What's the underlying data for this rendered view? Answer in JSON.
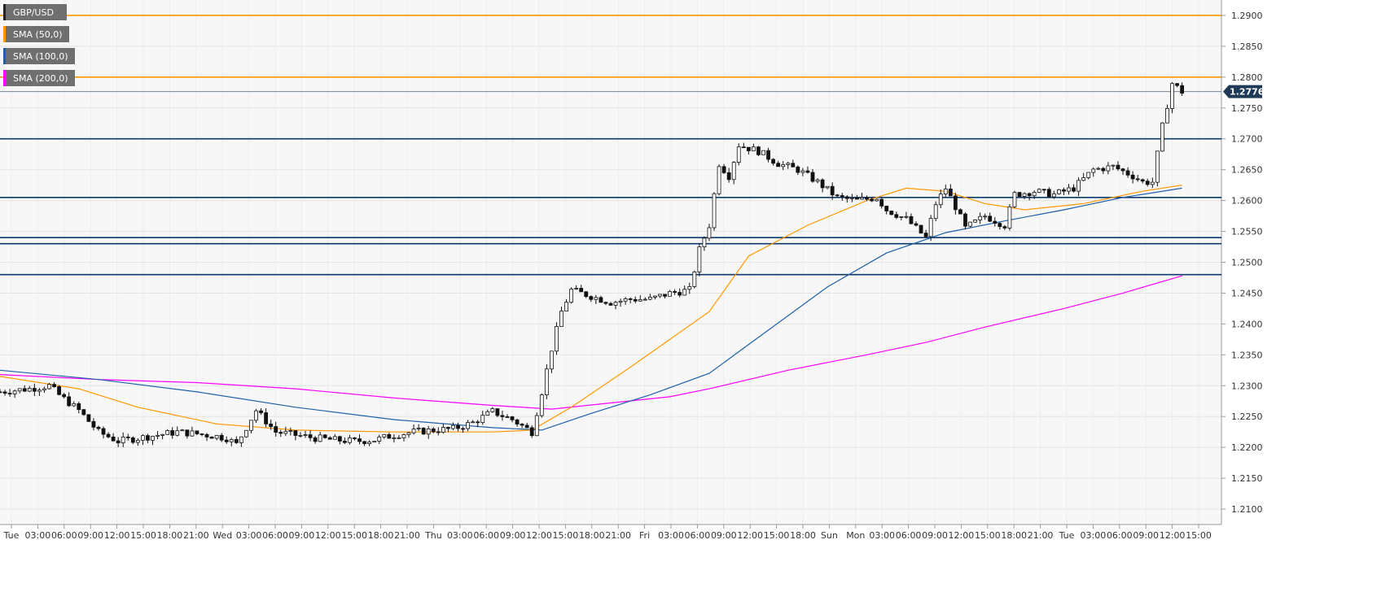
{
  "chart_data": {
    "type": "candlestick",
    "symbol": "GBP/USD",
    "ylim": [
      1.2075,
      1.2925
    ],
    "y_ticks": [
      "1.2100",
      "1.2150",
      "1.2200",
      "1.2250",
      "1.2300",
      "1.2350",
      "1.2400",
      "1.2450",
      "1.2500",
      "1.2550",
      "1.2600",
      "1.2650",
      "1.2700",
      "1.2750",
      "1.2800",
      "1.2850",
      "1.2900"
    ],
    "last_price": 1.27765,
    "last_price_label": "1.27765",
    "x_ticks": [
      "Tue",
      "03:00",
      "06:00",
      "09:00",
      "12:00",
      "15:00",
      "18:00",
      "21:00",
      "Wed",
      "03:00",
      "06:00",
      "09:00",
      "12:00",
      "15:00",
      "18:00",
      "21:00",
      "Thu",
      "03:00",
      "06:00",
      "09:00",
      "12:00",
      "15:00",
      "18:00",
      "21:00",
      "Fri",
      "03:00",
      "06:00",
      "09:00",
      "12:00",
      "15:00",
      "18:00",
      "Sun",
      "Mon",
      "03:00",
      "06:00",
      "09:00",
      "12:00",
      "15:00",
      "18:00",
      "21:00",
      "Tue",
      "03:00",
      "06:00",
      "09:00",
      "12:00",
      "15:00"
    ],
    "legend": [
      {
        "label": "GBP/USD",
        "color": "#222222"
      },
      {
        "label": "SMA (50,0)",
        "color": "#ff9800"
      },
      {
        "label": "SMA (100,0)",
        "color": "#1e5fa8"
      },
      {
        "label": "SMA (200,0)",
        "color": "#ff00ff"
      }
    ],
    "resistance_levels": [
      1.29,
      1.28
    ],
    "resistance_color": "#ff9800",
    "support_levels": [
      1.27,
      1.2605,
      1.254,
      1.253,
      1.248
    ],
    "support_color": "#0d3a6e",
    "price_path": [
      [
        0,
        1.229
      ],
      [
        3,
        1.2295
      ],
      [
        5,
        1.23
      ],
      [
        6,
        1.2285
      ],
      [
        8,
        1.226
      ],
      [
        10,
        1.2225
      ],
      [
        12,
        1.221
      ],
      [
        14,
        1.2215
      ],
      [
        16,
        1.222
      ],
      [
        18,
        1.2225
      ],
      [
        20,
        1.2222
      ],
      [
        22,
        1.2218
      ],
      [
        23,
        1.2215
      ],
      [
        24,
        1.2205
      ],
      [
        26,
        1.226
      ],
      [
        28,
        1.2225
      ],
      [
        30,
        1.222
      ],
      [
        32,
        1.2215
      ],
      [
        34,
        1.2212
      ],
      [
        36,
        1.221
      ],
      [
        38,
        1.2212
      ],
      [
        40,
        1.222
      ],
      [
        42,
        1.2225
      ],
      [
        44,
        1.2228
      ],
      [
        46,
        1.223
      ],
      [
        48,
        1.224
      ],
      [
        50,
        1.2258
      ],
      [
        52,
        1.2245
      ],
      [
        53,
        1.2235
      ],
      [
        54,
        1.2225
      ],
      [
        55,
        1.229
      ],
      [
        56,
        1.236
      ],
      [
        57,
        1.242
      ],
      [
        58,
        1.2455
      ],
      [
        60,
        1.2445
      ],
      [
        62,
        1.2435
      ],
      [
        64,
        1.244
      ],
      [
        66,
        1.244
      ],
      [
        68,
        1.245
      ],
      [
        70,
        1.2455
      ],
      [
        71,
        1.252
      ],
      [
        72,
        1.256
      ],
      [
        73,
        1.266
      ],
      [
        74,
        1.264
      ],
      [
        75,
        1.269
      ],
      [
        77,
        1.268
      ],
      [
        79,
        1.266
      ],
      [
        81,
        1.265
      ],
      [
        83,
        1.263
      ],
      [
        85,
        1.2605
      ],
      [
        87,
        1.26
      ],
      [
        89,
        1.2605
      ],
      [
        90,
        1.2585
      ],
      [
        92,
        1.257
      ],
      [
        94,
        1.254
      ],
      [
        95,
        1.2595
      ],
      [
        96,
        1.262
      ],
      [
        97,
        1.259
      ],
      [
        98,
        1.2555
      ],
      [
        100,
        1.2575
      ],
      [
        102,
        1.256
      ],
      [
        103,
        1.261
      ],
      [
        105,
        1.2615
      ],
      [
        107,
        1.261
      ],
      [
        109,
        1.262
      ],
      [
        111,
        1.265
      ],
      [
        113,
        1.2655
      ],
      [
        115,
        1.264
      ],
      [
        116,
        1.263
      ],
      [
        117,
        1.263
      ],
      [
        118,
        1.272
      ],
      [
        119,
        1.279
      ],
      [
        120,
        1.27765
      ]
    ],
    "sma_50": [
      [
        0,
        1.2315
      ],
      [
        8,
        1.2295
      ],
      [
        14,
        1.2265
      ],
      [
        22,
        1.2238
      ],
      [
        30,
        1.2228
      ],
      [
        40,
        1.2225
      ],
      [
        50,
        1.2225
      ],
      [
        54,
        1.2228
      ],
      [
        58,
        1.2265
      ],
      [
        64,
        1.233
      ],
      [
        68,
        1.2375
      ],
      [
        72,
        1.242
      ],
      [
        76,
        1.251
      ],
      [
        82,
        1.256
      ],
      [
        88,
        1.26
      ],
      [
        92,
        1.262
      ],
      [
        96,
        1.2615
      ],
      [
        100,
        1.2595
      ],
      [
        104,
        1.2585
      ],
      [
        110,
        1.2595
      ],
      [
        116,
        1.2615
      ],
      [
        120,
        1.2625
      ]
    ],
    "sma_100": [
      [
        0,
        1.2325
      ],
      [
        10,
        1.231
      ],
      [
        20,
        1.229
      ],
      [
        30,
        1.2265
      ],
      [
        40,
        1.2245
      ],
      [
        50,
        1.2232
      ],
      [
        55,
        1.2228
      ],
      [
        60,
        1.2255
      ],
      [
        66,
        1.2285
      ],
      [
        72,
        1.232
      ],
      [
        78,
        1.239
      ],
      [
        84,
        1.246
      ],
      [
        90,
        1.2515
      ],
      [
        96,
        1.2548
      ],
      [
        102,
        1.2567
      ],
      [
        108,
        1.2585
      ],
      [
        114,
        1.2605
      ],
      [
        120,
        1.262
      ]
    ],
    "sma_200": [
      [
        0,
        1.2318
      ],
      [
        10,
        1.231
      ],
      [
        20,
        1.2305
      ],
      [
        30,
        1.2295
      ],
      [
        40,
        1.228
      ],
      [
        50,
        1.2268
      ],
      [
        56,
        1.2262
      ],
      [
        62,
        1.2272
      ],
      [
        68,
        1.2282
      ],
      [
        72,
        1.2295
      ],
      [
        80,
        1.2325
      ],
      [
        88,
        1.235
      ],
      [
        94,
        1.237
      ],
      [
        100,
        1.2395
      ],
      [
        108,
        1.2425
      ],
      [
        114,
        1.245
      ],
      [
        120,
        1.2478
      ]
    ]
  }
}
